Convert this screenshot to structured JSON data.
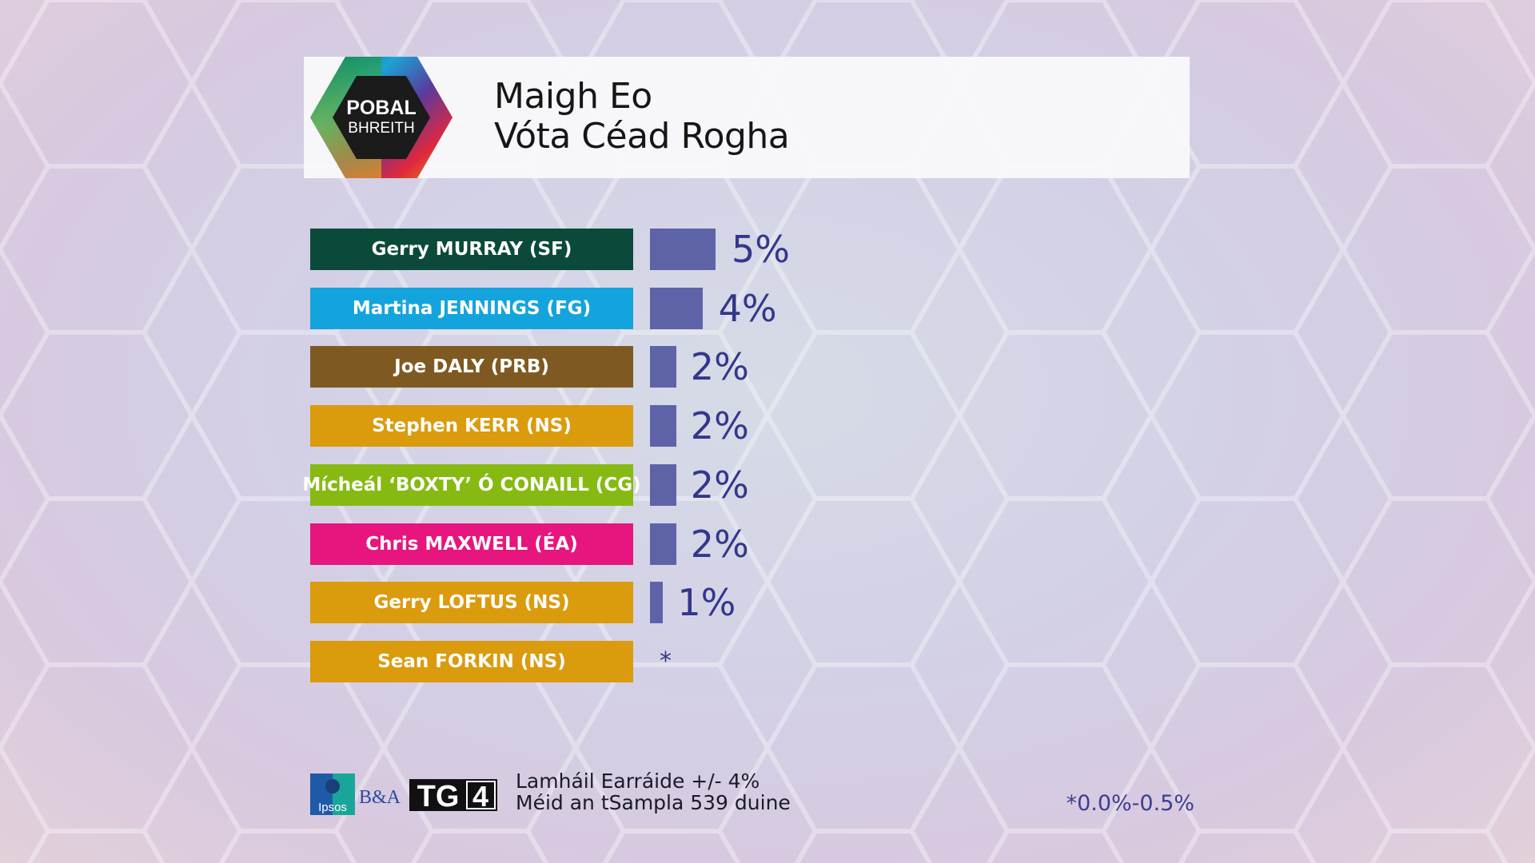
{
  "header": {
    "logo_text_line1": "POBAL",
    "logo_text_line2": "BHREITH",
    "title_line1": "Maigh Eo",
    "title_line2": "Vóta Céad Rogha"
  },
  "chart_data": {
    "type": "bar",
    "orientation": "horizontal",
    "title": "Maigh Eo Vóta Céad Rogha",
    "categories": [
      "Gerry MURRAY (SF)",
      "Martina JENNINGS (FG)",
      "Joe DALY (PRB)",
      "Stephen KERR (NS)",
      "Mícheál ‘BOXTY’ Ó CONAILL (CG)",
      "Chris MAXWELL (ÉA)",
      "Gerry LOFTUS (NS)",
      "Sean FORKIN (NS)"
    ],
    "values": [
      5,
      4,
      2,
      2,
      2,
      2,
      1,
      0.25
    ],
    "value_labels": [
      "5%",
      "4%",
      "2%",
      "2%",
      "2%",
      "2%",
      "1%",
      "*"
    ],
    "label_colors": [
      "#0b4a3b",
      "#14a4dd",
      "#7e5a22",
      "#da9b0d",
      "#86ba12",
      "#e6167e",
      "#da9b0d",
      "#da9b0d"
    ],
    "bar_color": "#5e63a8",
    "unit": "%"
  },
  "footer": {
    "margin_of_error": "Lamháil Earráide +/- 4%",
    "sample_size": "Méid an tSampla 539 duine",
    "footnote": "*0.0%-0.5%",
    "logo_ipsos": "Ipsos",
    "logo_ba": "B&A",
    "logo_tg4": "TG4"
  }
}
